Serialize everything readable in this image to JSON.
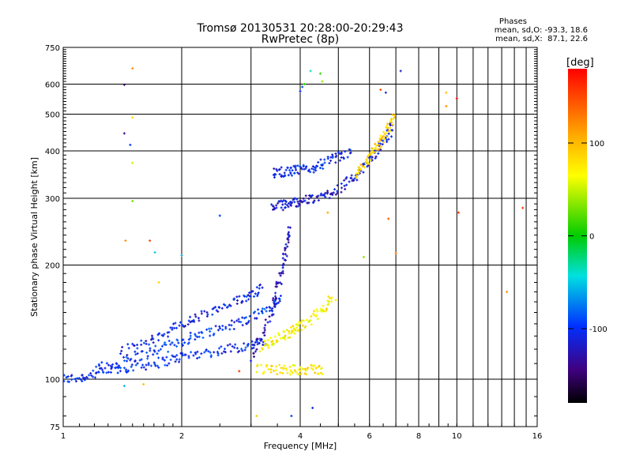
{
  "header": {
    "title_line1": "Tromsø 20130531 20:28:00-20:29:43",
    "title_line2": "RwPretec (8p)"
  },
  "stats": {
    "heading": "Phases",
    "line_o": "mean, sd,O: -93.3, 18.6",
    "line_x": "mean, sd,X:  87.1, 22.6"
  },
  "chart_data": {
    "type": "scatter",
    "title": "Tromsø 20130531 20:28:00-20:29:43",
    "subtitle": "RwPretec (8p)",
    "xlabel": "Frequency [MHz]",
    "ylabel": "Stationary phase Virtual Height [km]",
    "xscale": "log",
    "yscale": "log",
    "xlim": [
      1,
      16
    ],
    "ylim": [
      75,
      750
    ],
    "xticks": [
      1,
      2,
      4,
      6,
      8,
      10,
      16
    ],
    "xtick_labels": [
      "1",
      "2",
      "4",
      "6",
      "8",
      "10",
      "16"
    ],
    "yticks": [
      75,
      100,
      200,
      300,
      400,
      500,
      600,
      750
    ],
    "ytick_labels": [
      "75",
      "100",
      "200",
      "300",
      "400",
      "500",
      "600",
      "750"
    ],
    "grid": true,
    "colorbar": {
      "label": "[deg]",
      "range": [
        -180,
        180
      ],
      "ticks": [
        100,
        0,
        -100
      ],
      "tick_labels": [
        "100",
        "0",
        "-100"
      ]
    },
    "traces": [
      {
        "points": [
          [
            1.0,
            100
          ],
          [
            1.1,
            101
          ],
          [
            1.2,
            103
          ],
          [
            1.35,
            106
          ],
          [
            1.5,
            108
          ],
          [
            1.7,
            110
          ],
          [
            1.9,
            113
          ],
          [
            2.1,
            116
          ],
          [
            2.4,
            118
          ],
          [
            2.7,
            121
          ],
          [
            3.0,
            123
          ],
          [
            3.3,
            126
          ]
        ],
        "phase": -105
      },
      {
        "points": [
          [
            1.2,
            106
          ],
          [
            1.4,
            111
          ],
          [
            1.6,
            116
          ],
          [
            1.8,
            121
          ],
          [
            2.0,
            126
          ],
          [
            2.2,
            131
          ],
          [
            2.5,
            136
          ],
          [
            2.8,
            141
          ],
          [
            3.1,
            148
          ],
          [
            3.4,
            156
          ],
          [
            3.6,
            164
          ]
        ],
        "phase": -100
      },
      {
        "points": [
          [
            1.4,
            118
          ],
          [
            1.6,
            124
          ],
          [
            1.8,
            132
          ],
          [
            2.0,
            139
          ],
          [
            2.2,
            146
          ],
          [
            2.5,
            153
          ],
          [
            2.8,
            161
          ],
          [
            3.0,
            168
          ],
          [
            3.2,
            175
          ]
        ],
        "phase": -110
      },
      {
        "points": [
          [
            3.0,
            115
          ],
          [
            3.2,
            130
          ],
          [
            3.4,
            152
          ],
          [
            3.5,
            172
          ],
          [
            3.6,
            196
          ],
          [
            3.7,
            222
          ],
          [
            3.75,
            250
          ]
        ],
        "phase": -125
      },
      {
        "points": [
          [
            3.2,
            122
          ],
          [
            3.4,
            126
          ],
          [
            3.6,
            130
          ],
          [
            3.8,
            134
          ],
          [
            4.0,
            138
          ],
          [
            4.3,
            145
          ],
          [
            4.6,
            155
          ],
          [
            4.9,
            165
          ]
        ],
        "phase": 75
      },
      {
        "points": [
          [
            3.4,
            285
          ],
          [
            3.6,
            288
          ],
          [
            3.8,
            292
          ],
          [
            4.0,
            295
          ],
          [
            4.3,
            298
          ],
          [
            4.6,
            305
          ],
          [
            5.0,
            318
          ],
          [
            5.4,
            335
          ],
          [
            5.8,
            362
          ],
          [
            6.2,
            390
          ],
          [
            6.6,
            430
          ],
          [
            6.9,
            470
          ]
        ],
        "phase": -118
      },
      {
        "points": [
          [
            3.4,
            350
          ],
          [
            3.6,
            352
          ],
          [
            3.8,
            354
          ],
          [
            4.0,
            356
          ],
          [
            4.3,
            360
          ],
          [
            4.6,
            372
          ],
          [
            5.0,
            385
          ],
          [
            5.4,
            398
          ]
        ],
        "phase": -108
      },
      {
        "points": [
          [
            5.5,
            340
          ],
          [
            5.8,
            365
          ],
          [
            6.1,
            395
          ],
          [
            6.4,
            425
          ],
          [
            6.7,
            455
          ],
          [
            6.9,
            490
          ]
        ],
        "phase": 90
      },
      {
        "points": [
          [
            3.1,
            106
          ],
          [
            3.4,
            106
          ],
          [
            3.7,
            106
          ],
          [
            4.0,
            106
          ],
          [
            4.3,
            106
          ],
          [
            4.6,
            106
          ]
        ],
        "phase": 80
      }
    ],
    "scatter": [
      {
        "x": 1.43,
        "y": 598,
        "phase": -150
      },
      {
        "x": 1.5,
        "y": 660,
        "phase": 120
      },
      {
        "x": 1.5,
        "y": 490,
        "phase": 90
      },
      {
        "x": 1.43,
        "y": 445,
        "phase": -140
      },
      {
        "x": 1.48,
        "y": 415,
        "phase": -95
      },
      {
        "x": 1.5,
        "y": 372,
        "phase": 55
      },
      {
        "x": 1.5,
        "y": 295,
        "phase": 30
      },
      {
        "x": 1.44,
        "y": 232,
        "phase": 120
      },
      {
        "x": 1.66,
        "y": 232,
        "phase": 150
      },
      {
        "x": 1.71,
        "y": 216,
        "phase": -50
      },
      {
        "x": 2.5,
        "y": 270,
        "phase": -95
      },
      {
        "x": 4.0,
        "y": 575,
        "phase": -100
      },
      {
        "x": 4.05,
        "y": 590,
        "phase": -90
      },
      {
        "x": 4.1,
        "y": 600,
        "phase": 10
      },
      {
        "x": 4.25,
        "y": 650,
        "phase": -40
      },
      {
        "x": 4.5,
        "y": 640,
        "phase": 15
      },
      {
        "x": 4.55,
        "y": 610,
        "phase": 40
      },
      {
        "x": 6.4,
        "y": 580,
        "phase": 150
      },
      {
        "x": 6.6,
        "y": 570,
        "phase": -110
      },
      {
        "x": 7.2,
        "y": 650,
        "phase": -120
      },
      {
        "x": 9.4,
        "y": 570,
        "phase": 100
      },
      {
        "x": 9.4,
        "y": 525,
        "phase": 120
      },
      {
        "x": 10.0,
        "y": 550,
        "phase": 175
      },
      {
        "x": 10.1,
        "y": 275,
        "phase": 160
      },
      {
        "x": 14.7,
        "y": 283,
        "phase": 160
      },
      {
        "x": 13.4,
        "y": 170,
        "phase": 120
      },
      {
        "x": 5.8,
        "y": 210,
        "phase": 40
      },
      {
        "x": 7.0,
        "y": 215,
        "phase": 130
      },
      {
        "x": 6.7,
        "y": 265,
        "phase": 140
      },
      {
        "x": 4.7,
        "y": 275,
        "phase": 110
      },
      {
        "x": 3.1,
        "y": 80,
        "phase": 95
      },
      {
        "x": 3.8,
        "y": 80,
        "phase": -100
      },
      {
        "x": 4.3,
        "y": 84,
        "phase": -110
      },
      {
        "x": 1.43,
        "y": 96,
        "phase": -60
      },
      {
        "x": 1.6,
        "y": 97,
        "phase": 100
      },
      {
        "x": 1.75,
        "y": 180,
        "phase": 90
      },
      {
        "x": 2.0,
        "y": 212,
        "phase": -60
      },
      {
        "x": 2.8,
        "y": 105,
        "phase": 160
      }
    ]
  }
}
